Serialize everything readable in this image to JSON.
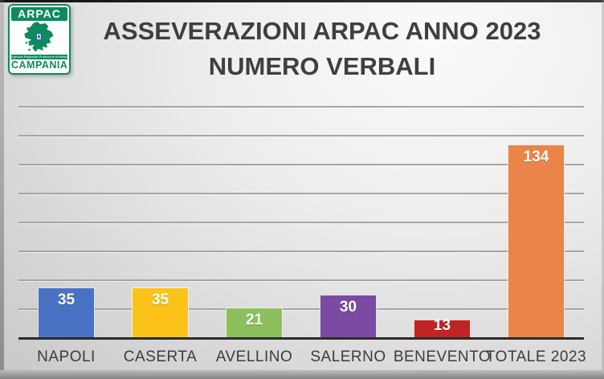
{
  "slide": {
    "title_line1": "ASSEVERAZIONI ARPAC ANNO 2023",
    "title_line2": "NUMERO VERBALI",
    "title_color": "#3f3f3f",
    "background_light": "#f8f8f8",
    "background_dark": "#c8c8c8"
  },
  "logo": {
    "top_text": "ARPAC",
    "small_text": "Agenzia Regionale Protezione Ambientale",
    "bottom_text": "CAMPANIA",
    "green": "#0E8A60",
    "emblem_blue": "#2a4da1"
  },
  "chart_data": {
    "type": "bar",
    "title": "ASSEVERAZIONI ARPAC ANNO 2023 NUMERO VERBALI",
    "categories": [
      "NAPOLI",
      "CASERTA",
      "AVELLINO",
      "SALERNO",
      "BENEVENTO",
      "TOTALE 2023"
    ],
    "values": [
      35,
      35,
      21,
      30,
      13,
      134
    ],
    "bar_colors": [
      "#4A72C4",
      "#FBC31A",
      "#8DC05C",
      "#7B4AA2",
      "#C22323",
      "#EB8448"
    ],
    "xlabel": "",
    "ylabel": "",
    "ylim": [
      0,
      160
    ],
    "gridline_step": 20,
    "grid": true,
    "y_axis_labels_visible": false,
    "legend": "none",
    "value_label_color": "#ffffff",
    "category_label_color": "#3c3c3c",
    "gridline_color": "#a5a5a5",
    "axis_color": "#2b2b2b"
  }
}
